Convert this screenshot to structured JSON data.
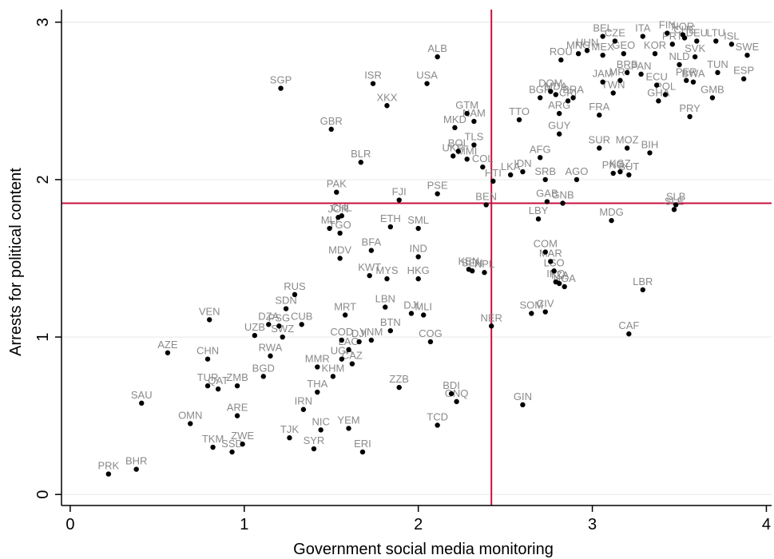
{
  "chart_data": {
    "type": "scatter",
    "title": "",
    "xlabel": "Government social media monitoring",
    "ylabel": "Arrests for political content",
    "xlim": [
      -0.05,
      4.03
    ],
    "ylim": [
      -0.07,
      3.08
    ],
    "xticks": [
      0,
      1,
      2,
      3,
      4
    ],
    "yticks": [
      0,
      1,
      2,
      3
    ],
    "grid": true,
    "reference_lines": {
      "x": 2.42,
      "y": 1.85
    },
    "colors": {
      "points": "#000000",
      "labels": "#8a8a8a",
      "reference": "#c8103e",
      "grid": "#e6ede9"
    },
    "points": [
      {
        "code": "PRK",
        "x": 0.22,
        "y": 0.13
      },
      {
        "code": "BHR",
        "x": 0.38,
        "y": 0.16
      },
      {
        "code": "SAU",
        "x": 0.41,
        "y": 0.58
      },
      {
        "code": "AZE",
        "x": 0.56,
        "y": 0.9
      },
      {
        "code": "OMN",
        "x": 0.69,
        "y": 0.45
      },
      {
        "code": "TKM",
        "x": 0.82,
        "y": 0.3
      },
      {
        "code": "SSD",
        "x": 0.93,
        "y": 0.27
      },
      {
        "code": "ZWE",
        "x": 0.99,
        "y": 0.32
      },
      {
        "code": "CHN",
        "x": 0.79,
        "y": 0.86
      },
      {
        "code": "TUR",
        "x": 0.79,
        "y": 0.69
      },
      {
        "code": "QAT",
        "x": 0.85,
        "y": 0.67
      },
      {
        "code": "ZMB",
        "x": 0.96,
        "y": 0.69
      },
      {
        "code": "ARE",
        "x": 0.96,
        "y": 0.5
      },
      {
        "code": "VEN",
        "x": 0.8,
        "y": 1.11
      },
      {
        "code": "BGD",
        "x": 1.11,
        "y": 0.75
      },
      {
        "code": "RWA",
        "x": 1.15,
        "y": 0.88
      },
      {
        "code": "UZB",
        "x": 1.06,
        "y": 1.01
      },
      {
        "code": "DZA",
        "x": 1.14,
        "y": 1.08
      },
      {
        "code": "PSG",
        "x": 1.2,
        "y": 1.07
      },
      {
        "code": "SWZ",
        "x": 1.22,
        "y": 1.0
      },
      {
        "code": "CUB",
        "x": 1.33,
        "y": 1.08
      },
      {
        "code": "SDN",
        "x": 1.24,
        "y": 1.18
      },
      {
        "code": "RUS",
        "x": 1.29,
        "y": 1.27
      },
      {
        "code": "IRN",
        "x": 1.34,
        "y": 0.54
      },
      {
        "code": "TJK",
        "x": 1.26,
        "y": 0.36
      },
      {
        "code": "SYR",
        "x": 1.4,
        "y": 0.29
      },
      {
        "code": "NIC",
        "x": 1.44,
        "y": 0.41
      },
      {
        "code": "YEM",
        "x": 1.6,
        "y": 0.42
      },
      {
        "code": "ERI",
        "x": 1.68,
        "y": 0.27
      },
      {
        "code": "THA",
        "x": 1.42,
        "y": 0.65
      },
      {
        "code": "MMR",
        "x": 1.42,
        "y": 0.81
      },
      {
        "code": "KHM",
        "x": 1.51,
        "y": 0.75
      },
      {
        "code": "UGA",
        "x": 1.56,
        "y": 0.86
      },
      {
        "code": "CAZ",
        "x": 1.62,
        "y": 0.83
      },
      {
        "code": "LAO",
        "x": 1.6,
        "y": 0.92
      },
      {
        "code": "COD",
        "x": 1.56,
        "y": 0.98
      },
      {
        "code": "DJI",
        "x": 1.66,
        "y": 0.97
      },
      {
        "code": "VNM",
        "x": 1.73,
        "y": 0.98
      },
      {
        "code": "BTN",
        "x": 1.84,
        "y": 1.04
      },
      {
        "code": "MRT",
        "x": 1.58,
        "y": 1.14
      },
      {
        "code": "LBN",
        "x": 1.81,
        "y": 1.19
      },
      {
        "code": "DJI",
        "x": 1.96,
        "y": 1.15
      },
      {
        "code": "MLI",
        "x": 2.03,
        "y": 1.14
      },
      {
        "code": "COG",
        "x": 2.07,
        "y": 0.97
      },
      {
        "code": "ZZB",
        "x": 1.89,
        "y": 0.68
      },
      {
        "code": "BDI",
        "x": 2.19,
        "y": 0.64
      },
      {
        "code": "GNQ",
        "x": 2.22,
        "y": 0.59
      },
      {
        "code": "TCD",
        "x": 2.11,
        "y": 0.44
      },
      {
        "code": "MDV",
        "x": 1.55,
        "y": 1.5
      },
      {
        "code": "KWT",
        "x": 1.72,
        "y": 1.39
      },
      {
        "code": "MYS",
        "x": 1.82,
        "y": 1.37
      },
      {
        "code": "BFA",
        "x": 1.73,
        "y": 1.55
      },
      {
        "code": "IND",
        "x": 2.0,
        "y": 1.51
      },
      {
        "code": "HKG",
        "x": 2.0,
        "y": 1.37
      },
      {
        "code": "MLI",
        "x": 1.49,
        "y": 1.69
      },
      {
        "code": "TGO",
        "x": 1.55,
        "y": 1.66
      },
      {
        "code": "JOR",
        "x": 1.54,
        "y": 1.76
      },
      {
        "code": "CHL",
        "x": 1.56,
        "y": 1.77
      },
      {
        "code": "PAK",
        "x": 1.53,
        "y": 1.92
      },
      {
        "code": "ETH",
        "x": 1.84,
        "y": 1.7
      },
      {
        "code": "SML",
        "x": 2.0,
        "y": 1.69
      },
      {
        "code": "KEN",
        "x": 2.29,
        "y": 1.43
      },
      {
        "code": "SEN",
        "x": 2.31,
        "y": 1.42
      },
      {
        "code": "NPL",
        "x": 2.38,
        "y": 1.41
      },
      {
        "code": "NER",
        "x": 2.42,
        "y": 1.07
      },
      {
        "code": "FJI",
        "x": 1.89,
        "y": 1.87
      },
      {
        "code": "PSE",
        "x": 2.11,
        "y": 1.91
      },
      {
        "code": "BEN",
        "x": 2.39,
        "y": 1.84
      },
      {
        "code": "SGP",
        "x": 1.21,
        "y": 2.58
      },
      {
        "code": "GBR",
        "x": 1.5,
        "y": 2.32
      },
      {
        "code": "BLR",
        "x": 1.67,
        "y": 2.11
      },
      {
        "code": "ISR",
        "x": 1.74,
        "y": 2.61
      },
      {
        "code": "XKX",
        "x": 1.82,
        "y": 2.47
      },
      {
        "code": "USA",
        "x": 2.05,
        "y": 2.61
      },
      {
        "code": "ALB",
        "x": 2.11,
        "y": 2.78
      },
      {
        "code": "GTM",
        "x": 2.28,
        "y": 2.42
      },
      {
        "code": "NAM",
        "x": 2.32,
        "y": 2.37
      },
      {
        "code": "MKD",
        "x": 2.21,
        "y": 2.33
      },
      {
        "code": "TLS",
        "x": 2.32,
        "y": 2.22
      },
      {
        "code": "UKR",
        "x": 2.2,
        "y": 2.15
      },
      {
        "code": "BOL",
        "x": 2.23,
        "y": 2.18
      },
      {
        "code": "MMI",
        "x": 2.28,
        "y": 2.13
      },
      {
        "code": "COL",
        "x": 2.37,
        "y": 2.08
      },
      {
        "code": "HTI",
        "x": 2.43,
        "y": 1.99
      },
      {
        "code": "LKA",
        "x": 2.53,
        "y": 2.03
      },
      {
        "code": "IDN",
        "x": 2.6,
        "y": 2.05
      },
      {
        "code": "AFG",
        "x": 2.7,
        "y": 2.14
      },
      {
        "code": "SRB",
        "x": 2.73,
        "y": 2.0
      },
      {
        "code": "AGO",
        "x": 2.91,
        "y": 2.0
      },
      {
        "code": "TTO",
        "x": 2.58,
        "y": 2.38
      },
      {
        "code": "GUY",
        "x": 2.81,
        "y": 2.29
      },
      {
        "code": "ARG",
        "x": 2.81,
        "y": 2.42
      },
      {
        "code": "GAB",
        "x": 2.74,
        "y": 1.86
      },
      {
        "code": "GNB",
        "x": 2.83,
        "y": 1.85
      },
      {
        "code": "LBY",
        "x": 2.69,
        "y": 1.75
      },
      {
        "code": "COM",
        "x": 2.73,
        "y": 1.54
      },
      {
        "code": "MAR",
        "x": 2.76,
        "y": 1.48
      },
      {
        "code": "LSO",
        "x": 2.78,
        "y": 1.42
      },
      {
        "code": "IRQ",
        "x": 2.79,
        "y": 1.35
      },
      {
        "code": "TZA",
        "x": 2.81,
        "y": 1.34
      },
      {
        "code": "NGA",
        "x": 2.84,
        "y": 1.32
      },
      {
        "code": "SOM",
        "x": 2.65,
        "y": 1.15
      },
      {
        "code": "CIV",
        "x": 2.73,
        "y": 1.16
      },
      {
        "code": "GIN",
        "x": 2.6,
        "y": 0.57
      },
      {
        "code": "MDG",
        "x": 3.11,
        "y": 1.74
      },
      {
        "code": "LBR",
        "x": 3.29,
        "y": 1.3
      },
      {
        "code": "CAF",
        "x": 3.21,
        "y": 1.02
      },
      {
        "code": "SUR",
        "x": 3.04,
        "y": 2.2
      },
      {
        "code": "MOZ",
        "x": 3.2,
        "y": 2.2
      },
      {
        "code": "BIH",
        "x": 3.33,
        "y": 2.17
      },
      {
        "code": "PNG",
        "x": 3.12,
        "y": 2.04
      },
      {
        "code": "KGZ",
        "x": 3.16,
        "y": 2.05
      },
      {
        "code": "BUT",
        "x": 3.21,
        "y": 2.03
      },
      {
        "code": "SLE",
        "x": 3.47,
        "y": 1.81
      },
      {
        "code": "SLB",
        "x": 3.48,
        "y": 1.84
      },
      {
        "code": "FRA",
        "x": 3.04,
        "y": 2.41
      },
      {
        "code": "BGR",
        "x": 2.7,
        "y": 2.52
      },
      {
        "code": "DOM",
        "x": 2.76,
        "y": 2.56
      },
      {
        "code": "MDA",
        "x": 2.79,
        "y": 2.54
      },
      {
        "code": "CRI",
        "x": 2.86,
        "y": 2.5
      },
      {
        "code": "BRA",
        "x": 2.89,
        "y": 2.52
      },
      {
        "code": "JAM",
        "x": 3.06,
        "y": 2.62
      },
      {
        "code": "TWN",
        "x": 3.12,
        "y": 2.55
      },
      {
        "code": "MRT",
        "x": 3.16,
        "y": 2.63
      },
      {
        "code": "BRB",
        "x": 3.2,
        "y": 2.68
      },
      {
        "code": "PAN",
        "x": 3.28,
        "y": 2.67
      },
      {
        "code": "ECU",
        "x": 3.37,
        "y": 2.6
      },
      {
        "code": "GHA",
        "x": 3.38,
        "y": 2.5
      },
      {
        "code": "POL",
        "x": 3.42,
        "y": 2.54
      },
      {
        "code": "PRY",
        "x": 3.56,
        "y": 2.4
      },
      {
        "code": "GMB",
        "x": 3.69,
        "y": 2.52
      },
      {
        "code": "BWA",
        "x": 3.58,
        "y": 2.62
      },
      {
        "code": "PER",
        "x": 3.54,
        "y": 2.63
      },
      {
        "code": "TUN",
        "x": 3.72,
        "y": 2.68
      },
      {
        "code": "ESP",
        "x": 3.87,
        "y": 2.64
      },
      {
        "code": "NLD",
        "x": 3.5,
        "y": 2.73
      },
      {
        "code": "SVK",
        "x": 3.59,
        "y": 2.78
      },
      {
        "code": "SWE",
        "x": 3.89,
        "y": 2.79
      },
      {
        "code": "ISL",
        "x": 3.8,
        "y": 2.86
      },
      {
        "code": "ROU",
        "x": 2.82,
        "y": 2.76
      },
      {
        "code": "MNG",
        "x": 2.92,
        "y": 2.8
      },
      {
        "code": "HUN",
        "x": 2.97,
        "y": 2.82
      },
      {
        "code": "MEX",
        "x": 3.06,
        "y": 2.79
      },
      {
        "code": "GEO",
        "x": 3.18,
        "y": 2.8
      },
      {
        "code": "BEL",
        "x": 3.06,
        "y": 2.91
      },
      {
        "code": "CZE",
        "x": 3.13,
        "y": 2.88
      },
      {
        "code": "ITA",
        "x": 3.29,
        "y": 2.91
      },
      {
        "code": "FIN",
        "x": 3.43,
        "y": 2.93
      },
      {
        "code": "NOR",
        "x": 3.52,
        "y": 2.92
      },
      {
        "code": "DEU",
        "x": 3.6,
        "y": 2.88
      },
      {
        "code": "PRT",
        "x": 3.46,
        "y": 2.86
      },
      {
        "code": "KOR",
        "x": 3.36,
        "y": 2.8
      },
      {
        "code": "LTU",
        "x": 3.71,
        "y": 2.88
      },
      {
        "code": "CHE",
        "x": 3.53,
        "y": 2.9
      }
    ]
  }
}
